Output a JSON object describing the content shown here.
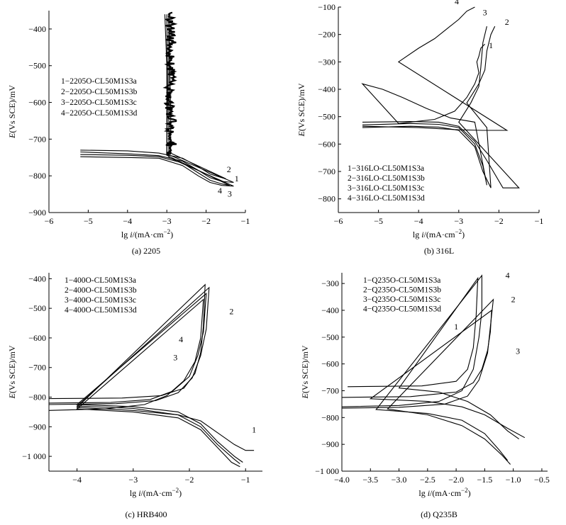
{
  "panels": [
    {
      "id": "a",
      "caption": "(a) 2205",
      "xlabel_prefix": "lg ",
      "xlabel_var": "i",
      "xlabel_unit": "/(mA·cm",
      "xlabel_exp": "−2",
      "xlabel_close": ")",
      "ylabel_var": "E",
      "ylabel_rest": "(Vs SCE)/mV",
      "xlim": [
        -6,
        -1
      ],
      "ylim": [
        -900,
        -350
      ],
      "xticks": [
        -6,
        -5,
        -4,
        -3,
        -2,
        -1
      ],
      "xtick_labels": [
        "−6",
        "−5",
        "−4",
        "−3",
        "−2",
        "−1"
      ],
      "yticks": [
        -900,
        -800,
        -700,
        -600,
        -500,
        -400
      ],
      "ytick_labels": [
        "−900",
        "−800",
        "−700",
        "−600",
        "−500",
        "−400"
      ],
      "legend": [
        "1−2205O-CL50M1S3a",
        "2−2205O-CL50M1S3b",
        "3−2205O-CL50M1S3c",
        "4−2205O-CL50M1S3d"
      ],
      "noise": {
        "x0": -3.0,
        "x1": -2.8,
        "y0": -740,
        "y1": -355,
        "amp": 0.13
      }
    },
    {
      "id": "b",
      "caption": "(b) 316L",
      "xlabel_prefix": "lg ",
      "xlabel_var": "i",
      "xlabel_unit": "/(mA·cm",
      "xlabel_exp": "−2",
      "xlabel_close": ")",
      "ylabel_var": "E",
      "ylabel_rest": "(Vs SCE)/mV",
      "xlim": [
        -6,
        -1
      ],
      "ylim": [
        -850,
        -100
      ],
      "xticks": [
        -6,
        -5,
        -4,
        -3,
        -2,
        -1
      ],
      "xtick_labels": [
        "−6",
        "−5",
        "−4",
        "−3",
        "−2",
        "−1"
      ],
      "yticks": [
        -800,
        -700,
        -600,
        -500,
        -400,
        -300,
        -200,
        -100
      ],
      "ytick_labels": [
        "−800",
        "−700",
        "−600",
        "−500",
        "−400",
        "−300",
        "−200",
        "−100"
      ],
      "legend": [
        "1−316LO-CL50M1S3a",
        "2−316LO-CL50M1S3b",
        "3−316LO-CL50M1S3c",
        "4−316LO-CL50M1S3d"
      ]
    },
    {
      "id": "c",
      "caption": "(c) HRB400",
      "xlabel_prefix": "lg ",
      "xlabel_var": "i",
      "xlabel_unit": "/(mA·cm",
      "xlabel_exp": "−2",
      "xlabel_close": ")",
      "ylabel_var": "E",
      "ylabel_rest": "(Vs SCE)/mV",
      "xlim": [
        -4.5,
        -0.7
      ],
      "ylim": [
        -1050,
        -380
      ],
      "xticks": [
        -4,
        -3,
        -2,
        -1
      ],
      "xtick_labels": [
        "−4",
        "−3",
        "−2",
        "−1"
      ],
      "yticks": [
        -1000,
        -900,
        -800,
        -700,
        -600,
        -500,
        -400
      ],
      "ytick_labels": [
        "−1 000",
        "−900",
        "−800",
        "−700",
        "−600",
        "−500",
        "−400"
      ],
      "legend": [
        "1−400O-CL50M1S3a",
        "2−400O-CL50M1S3b",
        "3−400O-CL50M1S3c",
        "4−400O-CL50M1S3d"
      ]
    },
    {
      "id": "d",
      "caption": "(d) Q235B",
      "xlabel_prefix": "lg ",
      "xlabel_var": "i",
      "xlabel_unit": "/(mA·cm",
      "xlabel_exp": "−2",
      "xlabel_close": ")",
      "ylabel_var": "E",
      "ylabel_rest": "(Vs SCE)/mV",
      "xlim": [
        -4.0,
        -0.4
      ],
      "ylim": [
        -1000,
        -260
      ],
      "xticks": [
        -4.0,
        -3.5,
        -3.0,
        -2.5,
        -2.0,
        -1.5,
        -1.0,
        -0.5
      ],
      "xtick_labels": [
        "−4.0",
        "−3.5",
        "−3.0",
        "−2.5",
        "−2.0",
        "−1.5",
        "−1.0",
        "−0.5"
      ],
      "yticks": [
        -1000,
        -900,
        -800,
        -700,
        -600,
        -500,
        -400,
        -300
      ],
      "ytick_labels": [
        "−1 000",
        "−900",
        "−800",
        "−700",
        "−600",
        "−500",
        "−400",
        "−300"
      ],
      "legend": [
        "1−Q235O-CL50M1S3a",
        "2−Q235O-CL50M1S3b",
        "3−Q235O-CL50M1S3c",
        "4−Q235O-CL50M1S3d"
      ]
    }
  ],
  "chart_data": [
    {
      "type": "line",
      "title": "(a) 2205",
      "xlabel": "lg i/(mA·cm−2)",
      "ylabel": "E(Vs SCE)/mV",
      "xlim": [
        -6,
        -1
      ],
      "ylim": [
        -900,
        -350
      ],
      "series": [
        {
          "name": "1−2205O-CL50M1S3a",
          "x": [
            -5.2,
            -4.0,
            -3.2,
            -2.6,
            -2.2,
            -1.9,
            -1.6,
            -1.3,
            -3.0,
            -3.0,
            -3.05
          ],
          "y": [
            -735,
            -740,
            -745,
            -760,
            -785,
            -805,
            -815,
            -818,
            -740,
            -500,
            -360
          ]
        },
        {
          "name": "2−2205O-CL50M1S3b",
          "x": [
            -5.2,
            -4.0,
            -3.2,
            -2.6,
            -2.2,
            -1.9,
            -1.6,
            -1.4,
            -3.0,
            -2.98,
            -3.0
          ],
          "y": [
            -742,
            -744,
            -748,
            -765,
            -792,
            -812,
            -822,
            -826,
            -744,
            -560,
            -360
          ]
        },
        {
          "name": "3−2205O-CL50M1S3c",
          "x": [
            -5.2,
            -4.0,
            -3.2,
            -2.6,
            -2.2,
            -1.9,
            -1.6,
            -1.3,
            -2.95,
            -2.95,
            -2.95
          ],
          "y": [
            -748,
            -750,
            -752,
            -772,
            -800,
            -818,
            -826,
            -828,
            -750,
            -600,
            -365
          ]
        },
        {
          "name": "4−2205O-CL50M1S3d",
          "x": [
            -5.2,
            -4.0,
            -3.2,
            -2.6,
            -2.2,
            -1.9,
            -1.6,
            -1.5,
            -2.9,
            -2.9,
            -2.95
          ],
          "y": [
            -730,
            -732,
            -738,
            -752,
            -775,
            -795,
            -805,
            -808,
            -738,
            -640,
            -370
          ]
        }
      ],
      "annotations": [
        {
          "text": "1",
          "x": -1.22,
          "y": -815
        },
        {
          "text": "2",
          "x": -1.42,
          "y": -790
        },
        {
          "text": "3",
          "x": -1.4,
          "y": -857
        },
        {
          "text": "4",
          "x": -1.65,
          "y": -848
        }
      ]
    },
    {
      "type": "line",
      "title": "(b) 316L",
      "xlabel": "lg i/(mA·cm−2)",
      "ylabel": "E(Vs SCE)/mV",
      "xlim": [
        -6,
        -1
      ],
      "ylim": [
        -850,
        -100
      ],
      "series": [
        {
          "name": "1−316LO-CL50M1S3a",
          "x": [
            -5.4,
            -4.2,
            -3.5,
            -3.0,
            -2.6,
            -2.4,
            -2.3,
            -2.6,
            -3.2,
            -3.8,
            -4.4,
            -4.9,
            -5.4,
            -4.5,
            -3.6,
            -3.1,
            -2.8,
            -2.6,
            -2.5,
            -2.55,
            -2.5,
            -2.45,
            -2.35
          ],
          "y": [
            -530,
            -525,
            -528,
            -540,
            -600,
            -680,
            -750,
            -520,
            -505,
            -470,
            -430,
            -400,
            -380,
            -525,
            -510,
            -480,
            -430,
            -380,
            -340,
            -300,
            -280,
            -250,
            -235
          ]
        },
        {
          "name": "2−316LO-CL50M1S3b",
          "x": [
            -5.4,
            -4.2,
            -3.5,
            -3.0,
            -2.6,
            -2.4,
            -2.2,
            -2.3,
            -2.8,
            -2.5,
            -2.35,
            -2.3,
            -2.2,
            -2.1
          ],
          "y": [
            -540,
            -535,
            -538,
            -550,
            -610,
            -700,
            -760,
            -540,
            -450,
            -380,
            -330,
            -260,
            -200,
            -170
          ]
        },
        {
          "name": "3−316LO-CL50M1S3c",
          "x": [
            -5.4,
            -4.2,
            -3.5,
            -3.0,
            -2.6,
            -2.3,
            -1.9,
            -1.5,
            -3.0,
            -2.7,
            -2.5,
            -2.45,
            -2.4,
            -2.3
          ],
          "y": [
            -520,
            -518,
            -520,
            -535,
            -590,
            -660,
            -760,
            -760,
            -520,
            -450,
            -390,
            -320,
            -230,
            -170
          ]
        },
        {
          "name": "4−316LO-CL50M1S3d",
          "x": [
            -5.4,
            -4.0,
            -3.0,
            -2.4,
            -1.8,
            -4.5,
            -4.0,
            -3.6,
            -3.3,
            -3.0,
            -2.8,
            -2.6
          ],
          "y": [
            -535,
            -540,
            -548,
            -550,
            -550,
            -300,
            -250,
            -215,
            -180,
            -145,
            -115,
            -100
          ]
        }
      ],
      "annotations": [
        {
          "text": "1",
          "x": -2.2,
          "y": -250
        },
        {
          "text": "2",
          "x": -1.8,
          "y": -165
        },
        {
          "text": "3",
          "x": -2.35,
          "y": -130
        },
        {
          "text": "4",
          "x": -3.05,
          "y": -90
        }
      ]
    },
    {
      "type": "line",
      "title": "(c) HRB400",
      "xlabel": "lg i/(mA·cm−2)",
      "ylabel": "E(Vs SCE)/mV",
      "xlim": [
        -4.5,
        -0.7
      ],
      "ylim": [
        -1050,
        -380
      ],
      "series": [
        {
          "name": "1−400O-CL50M1S3a",
          "x": [
            -4.5,
            -3.2,
            -2.5,
            -2.1,
            -1.9,
            -1.8,
            -1.75,
            -1.72,
            -4.0,
            -3.0,
            -2.2,
            -1.8,
            -1.5,
            -1.2,
            -1.0,
            -0.85
          ],
          "y": [
            -805,
            -803,
            -795,
            -770,
            -720,
            -650,
            -560,
            -420,
            -835,
            -845,
            -860,
            -880,
            -920,
            -960,
            -980,
            -980
          ]
        },
        {
          "name": "2−400O-CL50M1S3b",
          "x": [
            -4.5,
            -3.3,
            -2.6,
            -2.2,
            -1.95,
            -1.8,
            -1.7,
            -1.65,
            -4.0,
            -3.0,
            -2.2,
            -1.8,
            -1.5,
            -1.2,
            -1.1
          ],
          "y": [
            -825,
            -822,
            -812,
            -785,
            -735,
            -660,
            -570,
            -430,
            -830,
            -838,
            -860,
            -900,
            -960,
            -1010,
            -1025
          ]
        },
        {
          "name": "3−400O-CL50M1S3c",
          "x": [
            -4.5,
            -3.4,
            -2.7,
            -2.3,
            -2.0,
            -1.85,
            -1.75,
            -1.7,
            -4.0,
            -3.0,
            -2.2,
            -1.8,
            -1.5,
            -1.2,
            -1.05
          ],
          "y": [
            -820,
            -818,
            -808,
            -780,
            -730,
            -660,
            -580,
            -450,
            -825,
            -832,
            -850,
            -890,
            -950,
            -1000,
            -1020
          ]
        },
        {
          "name": "4−400O-CL50M1S3d",
          "x": [
            -4.5,
            -3.5,
            -2.8,
            -2.4,
            -2.1,
            -1.9,
            -1.8,
            -1.75,
            -4.0,
            -3.0,
            -2.2,
            -1.8,
            -1.5,
            -1.25,
            -1.1
          ],
          "y": [
            -845,
            -840,
            -825,
            -795,
            -745,
            -680,
            -600,
            -470,
            -840,
            -850,
            -870,
            -910,
            -970,
            -1020,
            -1035
          ]
        }
      ],
      "annotations": [
        {
          "text": "1",
          "x": -0.85,
          "y": -920
        },
        {
          "text": "2",
          "x": -1.25,
          "y": -520
        },
        {
          "text": "3",
          "x": -2.25,
          "y": -675
        },
        {
          "text": "4",
          "x": -2.15,
          "y": -615
        }
      ]
    },
    {
      "type": "line",
      "title": "(d) Q235B",
      "xlabel": "lg i/(mA·cm−2)",
      "ylabel": "E(Vs SCE)/mV",
      "xlim": [
        -4.0,
        -0.4
      ],
      "ylim": [
        -1000,
        -260
      ],
      "series": [
        {
          "name": "1−Q235O-CL50M1S3a",
          "x": [
            -4.0,
            -3.0,
            -2.3,
            -1.9,
            -1.7,
            -1.6,
            -1.55,
            -1.55,
            -3.4,
            -2.5,
            -1.9,
            -1.5,
            -1.25,
            -1.1
          ],
          "y": [
            -760,
            -755,
            -740,
            -700,
            -620,
            -500,
            -400,
            -270,
            -770,
            -785,
            -810,
            -860,
            -920,
            -960
          ]
        },
        {
          "name": "2−Q235O-CL50M1S3b",
          "x": [
            -4.0,
            -3.0,
            -2.2,
            -1.8,
            -1.6,
            -1.45,
            -1.4,
            -1.35,
            -3.2,
            -2.5,
            -1.9,
            -1.5,
            -1.2,
            -1.05
          ],
          "y": [
            -765,
            -762,
            -750,
            -720,
            -660,
            -560,
            -460,
            -360,
            -768,
            -790,
            -830,
            -880,
            -940,
            -975
          ]
        },
        {
          "name": "3−Q235O-CL50M1S3c",
          "x": [
            -4.0,
            -2.8,
            -2.0,
            -1.7,
            -1.55,
            -1.45,
            -1.4,
            -1.38,
            -3.5,
            -2.5,
            -1.9,
            -1.5,
            -1.1,
            -0.8
          ],
          "y": [
            -725,
            -722,
            -705,
            -670,
            -620,
            -550,
            -480,
            -400,
            -730,
            -740,
            -760,
            -790,
            -840,
            -875
          ]
        },
        {
          "name": "4−Q235O-CL50M1S3d",
          "x": [
            -3.9,
            -2.6,
            -2.0,
            -1.8,
            -1.7,
            -1.65,
            -1.62,
            -3.0,
            -2.3,
            -1.8,
            -1.4,
            -1.1,
            -0.9
          ],
          "y": [
            -685,
            -682,
            -665,
            -620,
            -540,
            -420,
            -280,
            -690,
            -705,
            -740,
            -790,
            -850,
            -880
          ]
        }
      ],
      "annotations": [
        {
          "text": "1",
          "x": -2.0,
          "y": -472
        },
        {
          "text": "2",
          "x": -1.0,
          "y": -370
        },
        {
          "text": "3",
          "x": -0.92,
          "y": -562
        },
        {
          "text": "4",
          "x": -1.1,
          "y": -280
        }
      ]
    }
  ]
}
